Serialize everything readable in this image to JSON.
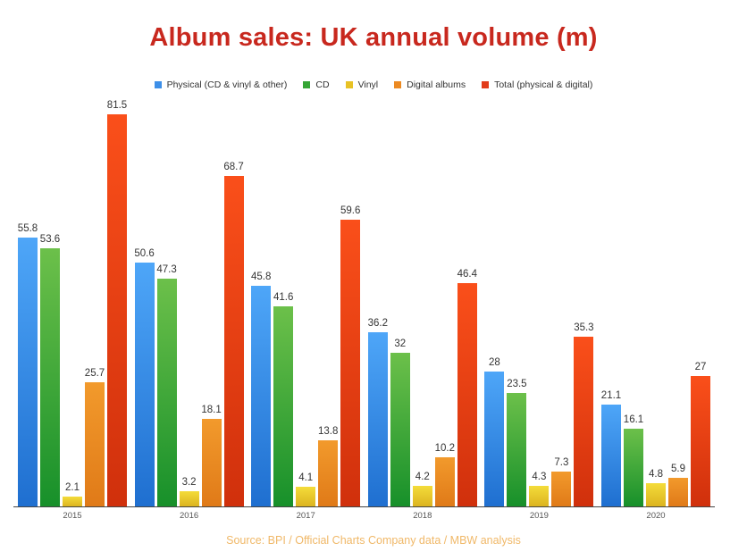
{
  "title": "Album sales: UK annual volume (m)",
  "legend": [
    {
      "label": "Physical (CD & vinyl & other)",
      "color": "#3d8fe8"
    },
    {
      "label": "CD",
      "color": "#35a535"
    },
    {
      "label": "Vinyl",
      "color": "#e8c225"
    },
    {
      "label": "Digital albums",
      "color": "#ec8a22"
    },
    {
      "label": "Total (physical & digital)",
      "color": "#e23c1a"
    }
  ],
  "source": "Source: BPI / Official Charts Company data / MBW analysis",
  "chart_data": {
    "type": "bar",
    "title": "Album sales: UK annual volume (m)",
    "xlabel": "",
    "ylabel": "",
    "categories": [
      "2015",
      "2016",
      "2017",
      "2018",
      "2019",
      "2020"
    ],
    "series": [
      {
        "name": "Physical (CD & vinyl & other)",
        "values": [
          55.8,
          50.6,
          45.8,
          36.2,
          28,
          21.1
        ]
      },
      {
        "name": "CD",
        "values": [
          53.6,
          47.3,
          41.6,
          32,
          23.5,
          16.1
        ]
      },
      {
        "name": "Vinyl",
        "values": [
          2.1,
          3.2,
          4.1,
          4.2,
          4.3,
          4.8
        ]
      },
      {
        "name": "Digital albums",
        "values": [
          25.7,
          18.1,
          13.8,
          10.2,
          7.3,
          5.9
        ]
      },
      {
        "name": "Total (physical & digital)",
        "values": [
          81.5,
          68.7,
          59.6,
          46.4,
          35.3,
          27
        ]
      }
    ],
    "ylim": [
      0,
      85
    ],
    "grid": false,
    "legend_position": "top",
    "data_labels": true,
    "annotations": [
      "Source: BPI / Official Charts Company data / MBW analysis"
    ]
  }
}
